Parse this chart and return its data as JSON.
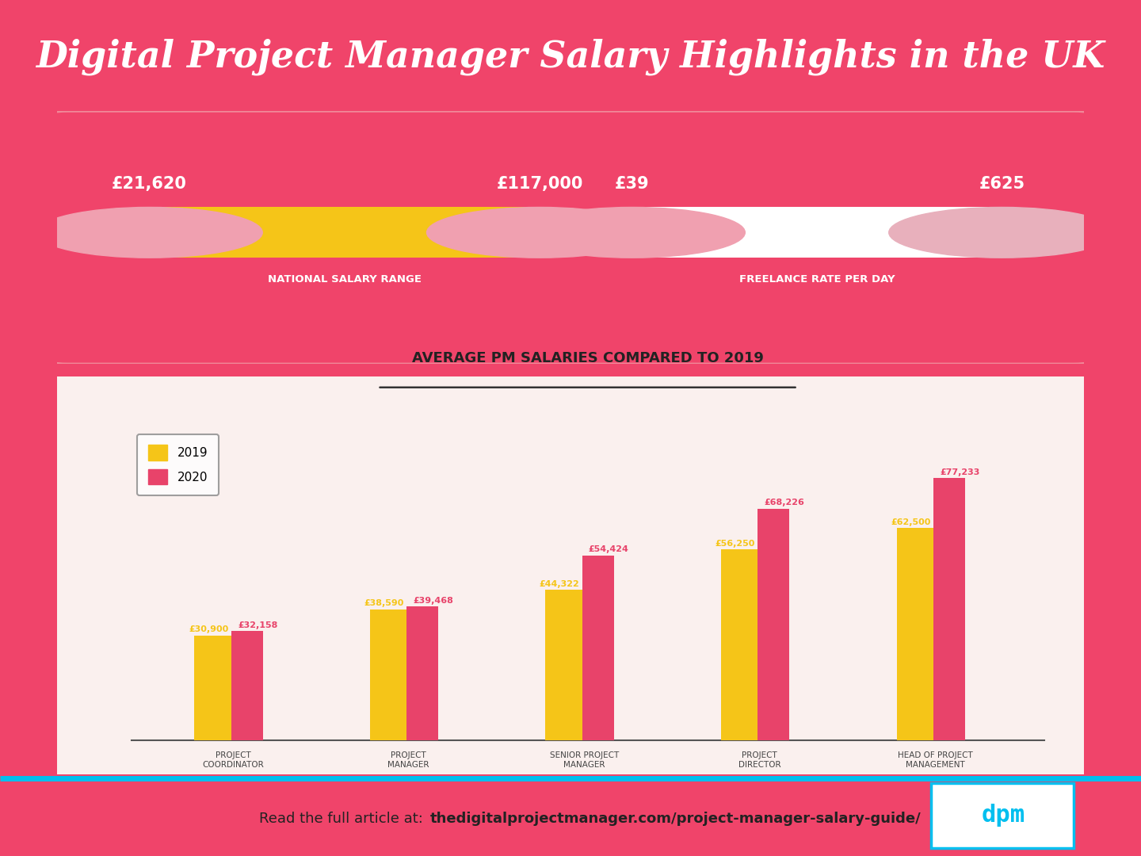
{
  "title": "Digital Project Manager Salary Highlights in the UK",
  "bg_color": "#F0446A",
  "bottom_panel_bg": "#FAF0EE",
  "salary_range_label": "NATIONAL SALARY RANGE",
  "salary_min": "£21,620",
  "salary_max": "£117,000",
  "freelance_label": "FREELANCE RATE PER DAY",
  "freelance_min": "£39",
  "freelance_max": "£625",
  "bar_title": "AVERAGE PM SALARIES COMPARED TO 2019",
  "categories": [
    "PROJECT\nCOORDINATOR",
    "PROJECT\nMANAGER",
    "SENIOR PROJECT\nMANAGER",
    "PROJECT\nDIRECTOR",
    "HEAD OF PROJECT\nMANAGEMENT"
  ],
  "values_2019": [
    30900,
    38590,
    44322,
    56250,
    62500
  ],
  "values_2020": [
    32158,
    39468,
    54424,
    68226,
    77233
  ],
  "labels_2019": [
    "£30,900",
    "£38,590",
    "£44,322",
    "£56,250",
    "£62,500"
  ],
  "labels_2020": [
    "£32,158",
    "£39,468",
    "£54,424",
    "£68,226",
    "£77,233"
  ],
  "color_2019": "#F5C518",
  "color_2020": "#E8436A",
  "pink_cap": "#F0A0B0",
  "pink_cap_right": "#E8B0BC",
  "orange_fill": "#F5C518",
  "footer_normal": "Read the full article at: ",
  "footer_bold": "thedigitalprojectmanager.com/project-manager-salary-guide/",
  "dpm_color": "#00BFEF",
  "stripe_color": "#00BFEF",
  "panel_border": "#F08898"
}
